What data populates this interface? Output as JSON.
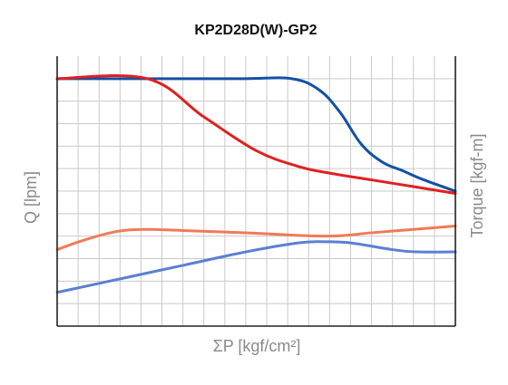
{
  "chart_data": {
    "type": "line",
    "title": "KP2D28D(W)-GP2",
    "xlabel": "ΣP [kgf/cm²]",
    "ylabel_left": "Q [lpm]",
    "ylabel_right": "Torque [kgf-m]",
    "xlim": [
      0,
      19
    ],
    "ylim": [
      0,
      12
    ],
    "grid": true,
    "legend": "none",
    "series": [
      {
        "color": "#1450a6",
        "points": [
          [
            0,
            11.0
          ],
          [
            3,
            11.0
          ],
          [
            6,
            11.0
          ],
          [
            9,
            11.0
          ],
          [
            11.2,
            11.0
          ],
          [
            12.5,
            10.5
          ],
          [
            13.5,
            9.5
          ],
          [
            14.5,
            8.1
          ],
          [
            15.5,
            7.3
          ],
          [
            16.5,
            6.9
          ],
          [
            17.5,
            6.5
          ],
          [
            19,
            6.0
          ]
        ]
      },
      {
        "color": "#e02020",
        "points": [
          [
            0,
            11.0
          ],
          [
            4.3,
            11.0
          ],
          [
            7,
            9.3
          ],
          [
            9.5,
            7.8
          ],
          [
            11.5,
            7.1
          ],
          [
            13,
            6.8
          ],
          [
            15,
            6.5
          ],
          [
            17,
            6.2
          ],
          [
            19,
            5.9
          ]
        ]
      },
      {
        "color": "#f07a5a",
        "points": [
          [
            0,
            3.4
          ],
          [
            1.2,
            3.8
          ],
          [
            2.8,
            4.2
          ],
          [
            4.2,
            4.3
          ],
          [
            6,
            4.25
          ],
          [
            9,
            4.15
          ],
          [
            12.8,
            4.0
          ],
          [
            15,
            4.15
          ],
          [
            17,
            4.3
          ],
          [
            19,
            4.45
          ]
        ]
      },
      {
        "color": "#5b7fd3",
        "points": [
          [
            0,
            1.5
          ],
          [
            3,
            2.1
          ],
          [
            6,
            2.7
          ],
          [
            9,
            3.3
          ],
          [
            11.5,
            3.7
          ],
          [
            12.8,
            3.75
          ],
          [
            14,
            3.7
          ],
          [
            16,
            3.4
          ],
          [
            17.2,
            3.3
          ],
          [
            19,
            3.3
          ]
        ]
      }
    ]
  }
}
